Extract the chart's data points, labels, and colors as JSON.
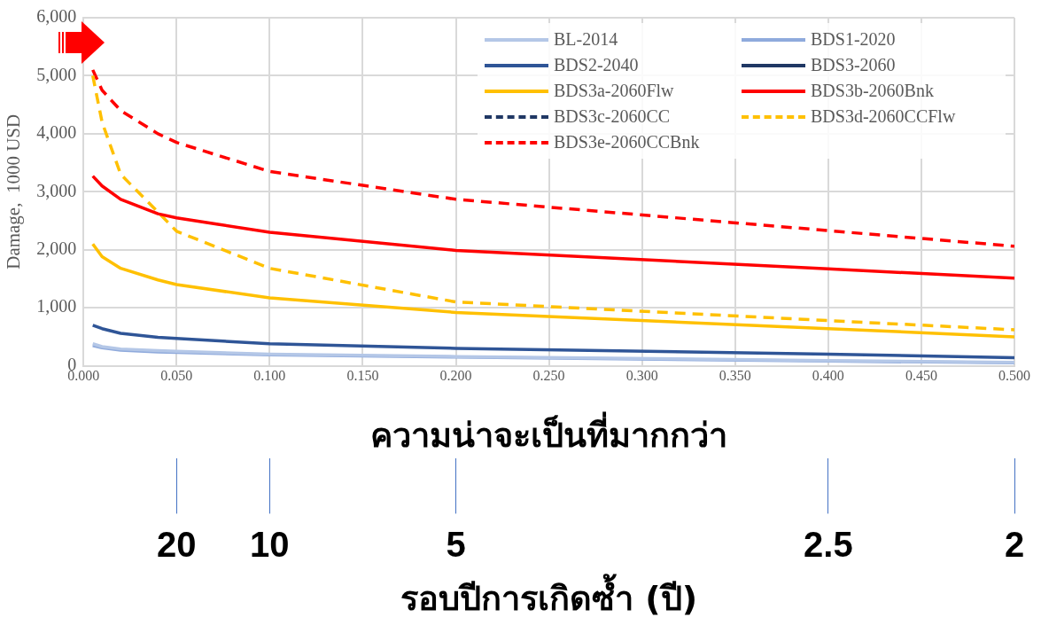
{
  "chart_data": {
    "type": "line",
    "ylabel": "Damage,  1000 USD",
    "xlabel": "ความน่าจะเป็นที่มากกว่า",
    "x2label": "รอบปีการเกิดซ้ำ (ปี)",
    "x": [
      0.005,
      0.01,
      0.02,
      0.04,
      0.05,
      0.1,
      0.2,
      0.4,
      0.5
    ],
    "xlim": [
      0,
      0.5
    ],
    "xticks": [
      {
        "value": 0,
        "label": "0.000"
      },
      {
        "value": 0.05,
        "label": "0.050"
      },
      {
        "value": 0.1,
        "label": "0.100"
      },
      {
        "value": 0.15,
        "label": "0.150"
      },
      {
        "value": 0.2,
        "label": "0.200"
      },
      {
        "value": 0.25,
        "label": "0.250"
      },
      {
        "value": 0.3,
        "label": "0.300"
      },
      {
        "value": 0.35,
        "label": "0.350"
      },
      {
        "value": 0.4,
        "label": "0.400"
      },
      {
        "value": 0.45,
        "label": "0.450"
      },
      {
        "value": 0.5,
        "label": "0.500"
      }
    ],
    "annotations": [
      {
        "text": "20",
        "x": 0.05
      },
      {
        "text": "10",
        "x": 0.1
      },
      {
        "text": "5",
        "x": 0.2
      },
      {
        "text": "2.5",
        "x": 0.4
      },
      {
        "text": "2",
        "x": 0.5
      }
    ],
    "ylim": [
      0,
      6000
    ],
    "yticks": [
      0,
      {
        "value": 1000,
        "label": "1,000"
      },
      {
        "value": 2000,
        "label": "2,000"
      },
      {
        "value": 3000,
        "label": "3,000"
      },
      {
        "value": 4000,
        "label": "4,000"
      },
      {
        "value": 5000,
        "label": "5,000"
      },
      {
        "value": 6000,
        "label": "6,000"
      }
    ],
    "grid": true,
    "legend": "top right",
    "marker": "none",
    "series": [
      {
        "name": "BL-2014",
        "color": "#b4c7e7",
        "values": [
          380,
          330,
          290,
          260,
          250,
          200,
          160,
          90,
          60
        ]
      },
      {
        "name": "BDS1-2020",
        "color": "#8faadc",
        "values": [
          350,
          310,
          270,
          240,
          230,
          190,
          150,
          80,
          50
        ]
      },
      {
        "name": "BDS2-2040",
        "color": "#2f5597",
        "values": [
          700,
          640,
          560,
          490,
          470,
          380,
          300,
          200,
          140
        ]
      },
      {
        "name": "BDS3-2060",
        "color": "#203864",
        "values": [
          null,
          null,
          null,
          null,
          null,
          null,
          null,
          null,
          null
        ]
      },
      {
        "name": "BDS3a-2060Flw",
        "color": "#ffc000",
        "values": [
          2100,
          1880,
          1680,
          1480,
          1400,
          1170,
          920,
          640,
          500
        ]
      },
      {
        "name": "BDS3b-2060Bnk",
        "color": "#ff0000",
        "values": [
          3270,
          3100,
          2870,
          2620,
          2550,
          2300,
          1990,
          1670,
          1510
        ]
      },
      {
        "name": "BDS3c-2060CC",
        "color": "#203864",
        "line_style": "dashed",
        "values": [
          null,
          null,
          null,
          null,
          null,
          null,
          null,
          null,
          null
        ]
      },
      {
        "name": "BDS3d-2060CCFlw",
        "color": "#ffc000",
        "line_style": "dashed",
        "values": [
          5000,
          4200,
          3300,
          2650,
          2320,
          1680,
          1100,
          780,
          620
        ]
      },
      {
        "name": "BDS3e-2060CCBnk",
        "color": "#ff0000",
        "line_style": "dashed",
        "values": [
          5100,
          4750,
          4400,
          4000,
          3850,
          3350,
          2870,
          2330,
          2060
        ]
      }
    ]
  }
}
